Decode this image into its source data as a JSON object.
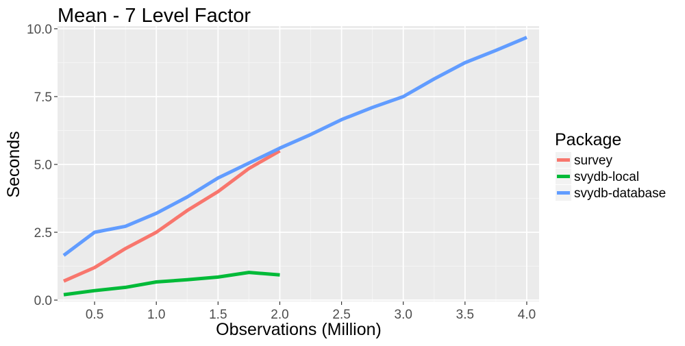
{
  "chart_data": {
    "type": "line",
    "title": "Mean - 7 Level Factor",
    "xlabel": "Observations (Million)",
    "ylabel": "Seconds",
    "xlim": [
      0.2,
      4.1
    ],
    "ylim": [
      -0.05,
      10.1
    ],
    "x_ticks": [
      0.5,
      1.0,
      1.5,
      2.0,
      2.5,
      3.0,
      3.5,
      4.0
    ],
    "x_tick_labels": [
      "0.5",
      "1.0",
      "1.5",
      "2.0",
      "2.5",
      "3.0",
      "3.5",
      "4.0"
    ],
    "y_ticks": [
      0.0,
      2.5,
      5.0,
      7.5,
      10.0
    ],
    "y_tick_labels": [
      "0.0",
      "2.5",
      "5.0",
      "7.5",
      "10.0"
    ],
    "grid": true,
    "background": "#ebebeb",
    "legend": {
      "title": "Package",
      "position": "right"
    },
    "series": [
      {
        "name": "survey",
        "color": "#f8766d",
        "x": [
          0.25,
          0.5,
          0.75,
          1.0,
          1.25,
          1.5,
          1.75,
          2.0
        ],
        "y": [
          0.7,
          1.2,
          1.9,
          2.5,
          3.3,
          4.0,
          4.85,
          5.5
        ]
      },
      {
        "name": "svydb-local",
        "color": "#00ba38",
        "x": [
          0.25,
          0.5,
          0.75,
          1.0,
          1.25,
          1.5,
          1.75,
          2.0
        ],
        "y": [
          0.2,
          0.35,
          0.47,
          0.67,
          0.75,
          0.85,
          1.02,
          0.93
        ]
      },
      {
        "name": "svydb-database",
        "color": "#619cff",
        "x": [
          0.25,
          0.5,
          0.75,
          1.0,
          1.25,
          1.5,
          1.75,
          2.0,
          2.25,
          2.5,
          2.75,
          3.0,
          3.25,
          3.5,
          3.75,
          4.0
        ],
        "y": [
          1.65,
          2.5,
          2.72,
          3.2,
          3.8,
          4.5,
          5.05,
          5.6,
          6.1,
          6.65,
          7.1,
          7.5,
          8.15,
          8.75,
          9.2,
          9.68
        ]
      }
    ]
  }
}
